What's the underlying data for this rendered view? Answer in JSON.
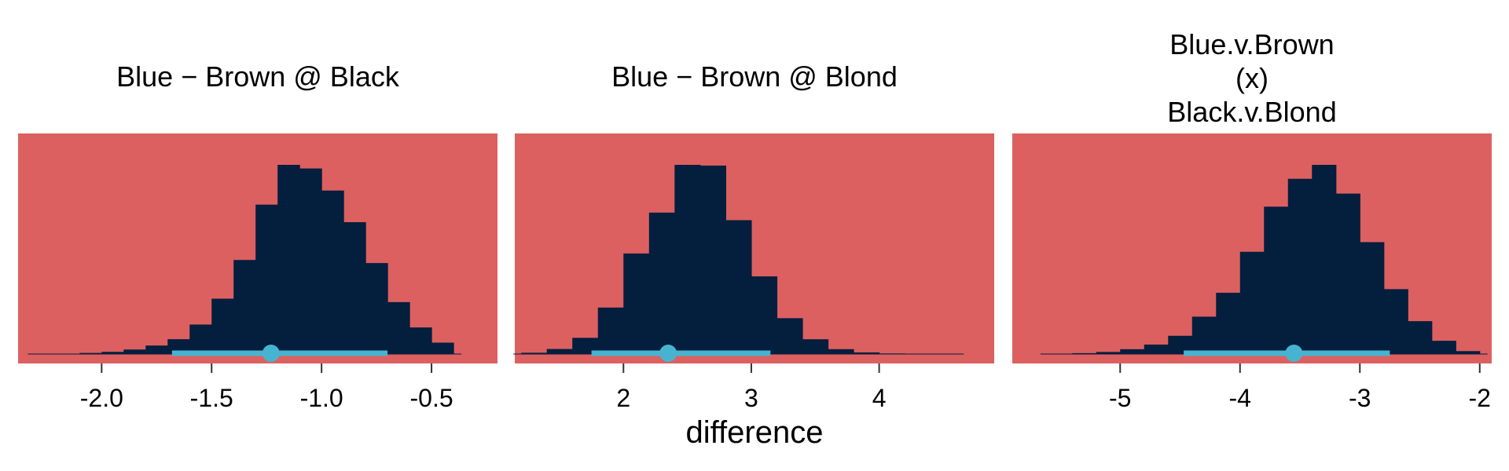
{
  "figure": {
    "xlabel": "difference",
    "panel_bg": "#DC6060",
    "bar_color": "#041E3E",
    "interval_color": "#46B4D0"
  },
  "chart_data": [
    {
      "type": "histogram",
      "title": [
        "Blue − Brown @ Black"
      ],
      "xlim": [
        -2.38,
        -0.2
      ],
      "ticks": [
        -2.0,
        -1.5,
        -1.0,
        -0.5
      ],
      "tick_labels": [
        "-2.0",
        "-1.5",
        "-1.0",
        "-0.5"
      ],
      "bin_edges": [
        -2.3,
        -2.2,
        -2.1,
        -2.0,
        -1.9,
        -1.8,
        -1.7,
        -1.6,
        -1.5,
        -1.4,
        -1.3,
        -1.2,
        -1.1,
        -1.0,
        -0.9,
        -0.8,
        -0.7,
        -0.6,
        -0.5,
        -0.4
      ],
      "counts": [
        1,
        2,
        6,
        12,
        25,
        47,
        82,
        163,
        306,
        520,
        826,
        1046,
        1026,
        904,
        729,
        503,
        287,
        147,
        63,
        21
      ],
      "point_estimate": -1.23,
      "interval": [
        -1.68,
        -0.7
      ]
    },
    {
      "type": "histogram",
      "title": [
        "Blue − Brown @ Blond"
      ],
      "xlim": [
        1.15,
        4.9
      ],
      "ticks": [
        2,
        3,
        4
      ],
      "tick_labels": [
        "2",
        "3",
        "4"
      ],
      "bin_edges": [
        1.2,
        1.4,
        1.6,
        1.8,
        2.0,
        2.2,
        2.4,
        2.6,
        2.8,
        3.0,
        3.2,
        3.4,
        3.6,
        3.8,
        4.0,
        4.2,
        4.4,
        4.6
      ],
      "counts": [
        7,
        28,
        90,
        258,
        558,
        785,
        1050,
        1046,
        743,
        431,
        199,
        82,
        27,
        9,
        3,
        1,
        1
      ],
      "point_estimate": 2.35,
      "interval": [
        1.75,
        3.15
      ]
    },
    {
      "type": "histogram",
      "title": [
        "Blue.v.Brown",
        "(x)",
        "Black.v.Blond"
      ],
      "xlim": [
        -5.9,
        -1.9
      ],
      "ticks": [
        -5,
        -4,
        -3,
        -2
      ],
      "tick_labels": [
        "-5",
        "-4",
        "-3",
        "-2"
      ],
      "bin_edges": [
        -5.6,
        -5.4,
        -5.2,
        -5.0,
        -4.8,
        -4.6,
        -4.4,
        -4.2,
        -4.0,
        -3.8,
        -3.6,
        -3.4,
        -3.2,
        -3.0,
        -2.8,
        -2.6,
        -2.4,
        -2.2,
        -2.0
      ],
      "counts": [
        1,
        5,
        12,
        28,
        55,
        106,
        217,
        356,
        594,
        856,
        1018,
        1099,
        932,
        650,
        377,
        191,
        77,
        17
      ],
      "point_estimate": -3.55,
      "interval": [
        -4.47,
        -2.75
      ]
    }
  ]
}
